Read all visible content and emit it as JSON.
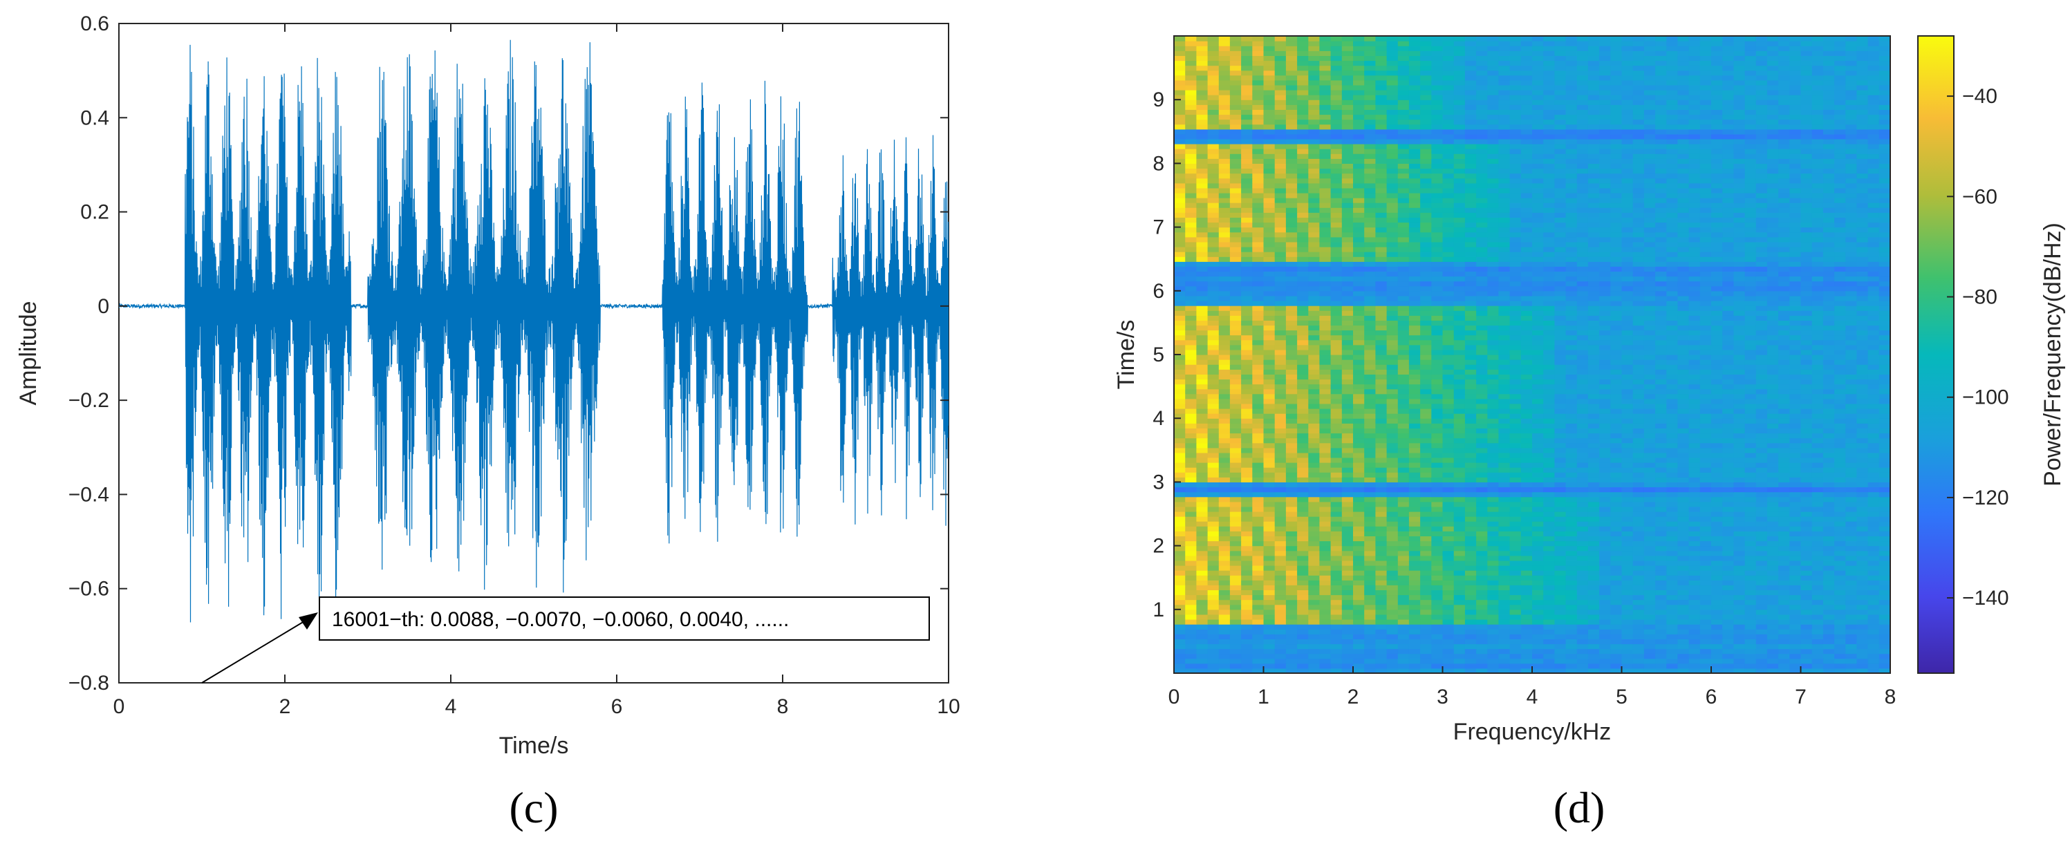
{
  "chart_data": [
    {
      "type": "line",
      "panel": "(c)",
      "xlabel": "Time/s",
      "ylabel": "Amplitude",
      "xlim": [
        0,
        10
      ],
      "ylim": [
        -0.8,
        0.6
      ],
      "xticks": [
        "0",
        "2",
        "4",
        "6",
        "8",
        "10"
      ],
      "yticks": [
        "-0.8",
        "-0.6",
        "-0.4",
        "-0.2",
        "0",
        "0.2",
        "0.4",
        "0.6"
      ],
      "grid": false,
      "color": "#0072BD",
      "annotation": "16001−th: 0.0088, −0.0070, −0.0060, 0.0040, ......",
      "annotation_arrow_target": [
        1.0,
        -0.8
      ],
      "segments": [
        {
          "start": 0.8,
          "end": 2.8,
          "peak_pos": 0.58,
          "peak_neg": -0.71
        },
        {
          "start": 3.0,
          "end": 5.8,
          "peak_pos": 0.58,
          "peak_neg": -0.62
        },
        {
          "start": 6.55,
          "end": 8.3,
          "peak_pos": 0.5,
          "peak_neg": -0.52
        },
        {
          "start": 8.6,
          "end": 10.0,
          "peak_pos": 0.38,
          "peak_neg": -0.47
        }
      ],
      "baseline_noise": 0.004
    },
    {
      "type": "heatmap",
      "panel": "(d)",
      "xlabel": "Frequency/kHz",
      "ylabel": "Time/s",
      "xlim": [
        0,
        8
      ],
      "ylim": [
        0,
        10
      ],
      "xticks": [
        "0",
        "1",
        "2",
        "3",
        "4",
        "5",
        "6",
        "7",
        "8"
      ],
      "yticks": [
        "1",
        "2",
        "3",
        "4",
        "5",
        "6",
        "7",
        "8",
        "9"
      ],
      "colorbar_label": "Power/Frequency(dB/Hz)",
      "colorbar_ticks": [
        "-40",
        "-60",
        "-80",
        "-100",
        "-120",
        "-140"
      ],
      "clim": [
        -155,
        -28
      ],
      "colormap": "parula",
      "speech_intervals": [
        {
          "t0": 0.8,
          "t1": 2.8,
          "fmax": 4.7
        },
        {
          "t0": 3.0,
          "t1": 5.8,
          "fmax": 4.3
        },
        {
          "t0": 6.5,
          "t1": 8.3,
          "fmax": 3.8
        },
        {
          "t0": 8.55,
          "t1": 10.0,
          "fmax": 3.2
        }
      ],
      "background_level": -115
    }
  ]
}
